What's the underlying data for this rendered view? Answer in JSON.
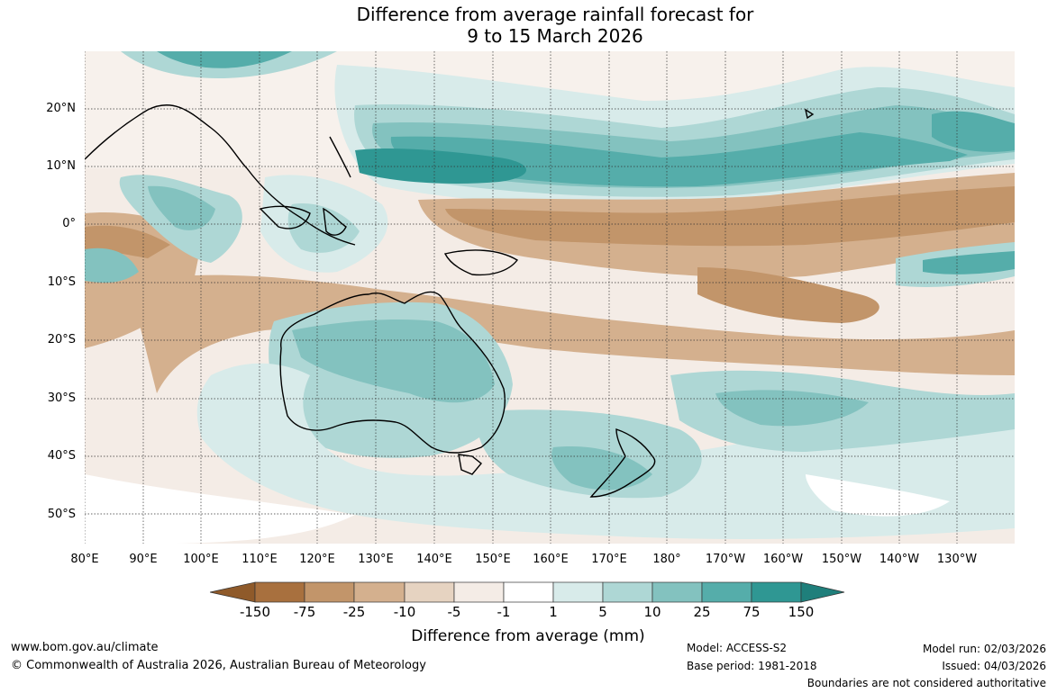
{
  "title": {
    "line1": "Difference from average rainfall forecast for",
    "line2": "9 to 15 March 2026"
  },
  "map": {
    "lat_labels": [
      "20°N",
      "10°N",
      "0°",
      "10°S",
      "20°S",
      "30°S",
      "40°S",
      "50°S"
    ],
    "lon_labels": [
      "80°E",
      "90°E",
      "100°E",
      "110°E",
      "120°E",
      "130°E",
      "140°E",
      "150°E",
      "160°E",
      "170°E",
      "180°",
      "170°W",
      "160°W",
      "150°W",
      "140°W",
      "130°W"
    ]
  },
  "colorbar": {
    "ticks": [
      "-150",
      "-75",
      "-25",
      "-10",
      "-5",
      "-1",
      "1",
      "5",
      "10",
      "25",
      "75",
      "150"
    ],
    "colors": [
      "#8f5a2a",
      "#a8703e",
      "#c2956a",
      "#d4b08e",
      "#e6d3c1",
      "#f4ece6",
      "#ffffff",
      "#d8ebea",
      "#aed7d5",
      "#83c2bf",
      "#55adaa",
      "#2f9793",
      "#1f7f7b"
    ],
    "title": "Difference from average (mm)"
  },
  "footer": {
    "website": "www.bom.gov.au/climate",
    "copyright": "© Commonwealth of Australia 2026, Australian Bureau of Meteorology",
    "model": "Model: ACCESS-S2",
    "base_period": "Base period: 1981-2018",
    "model_run": "Model run: 02/03/2026",
    "issued": "Issued: 04/03/2026",
    "disclaimer": "Boundaries are not considered authoritative"
  }
}
